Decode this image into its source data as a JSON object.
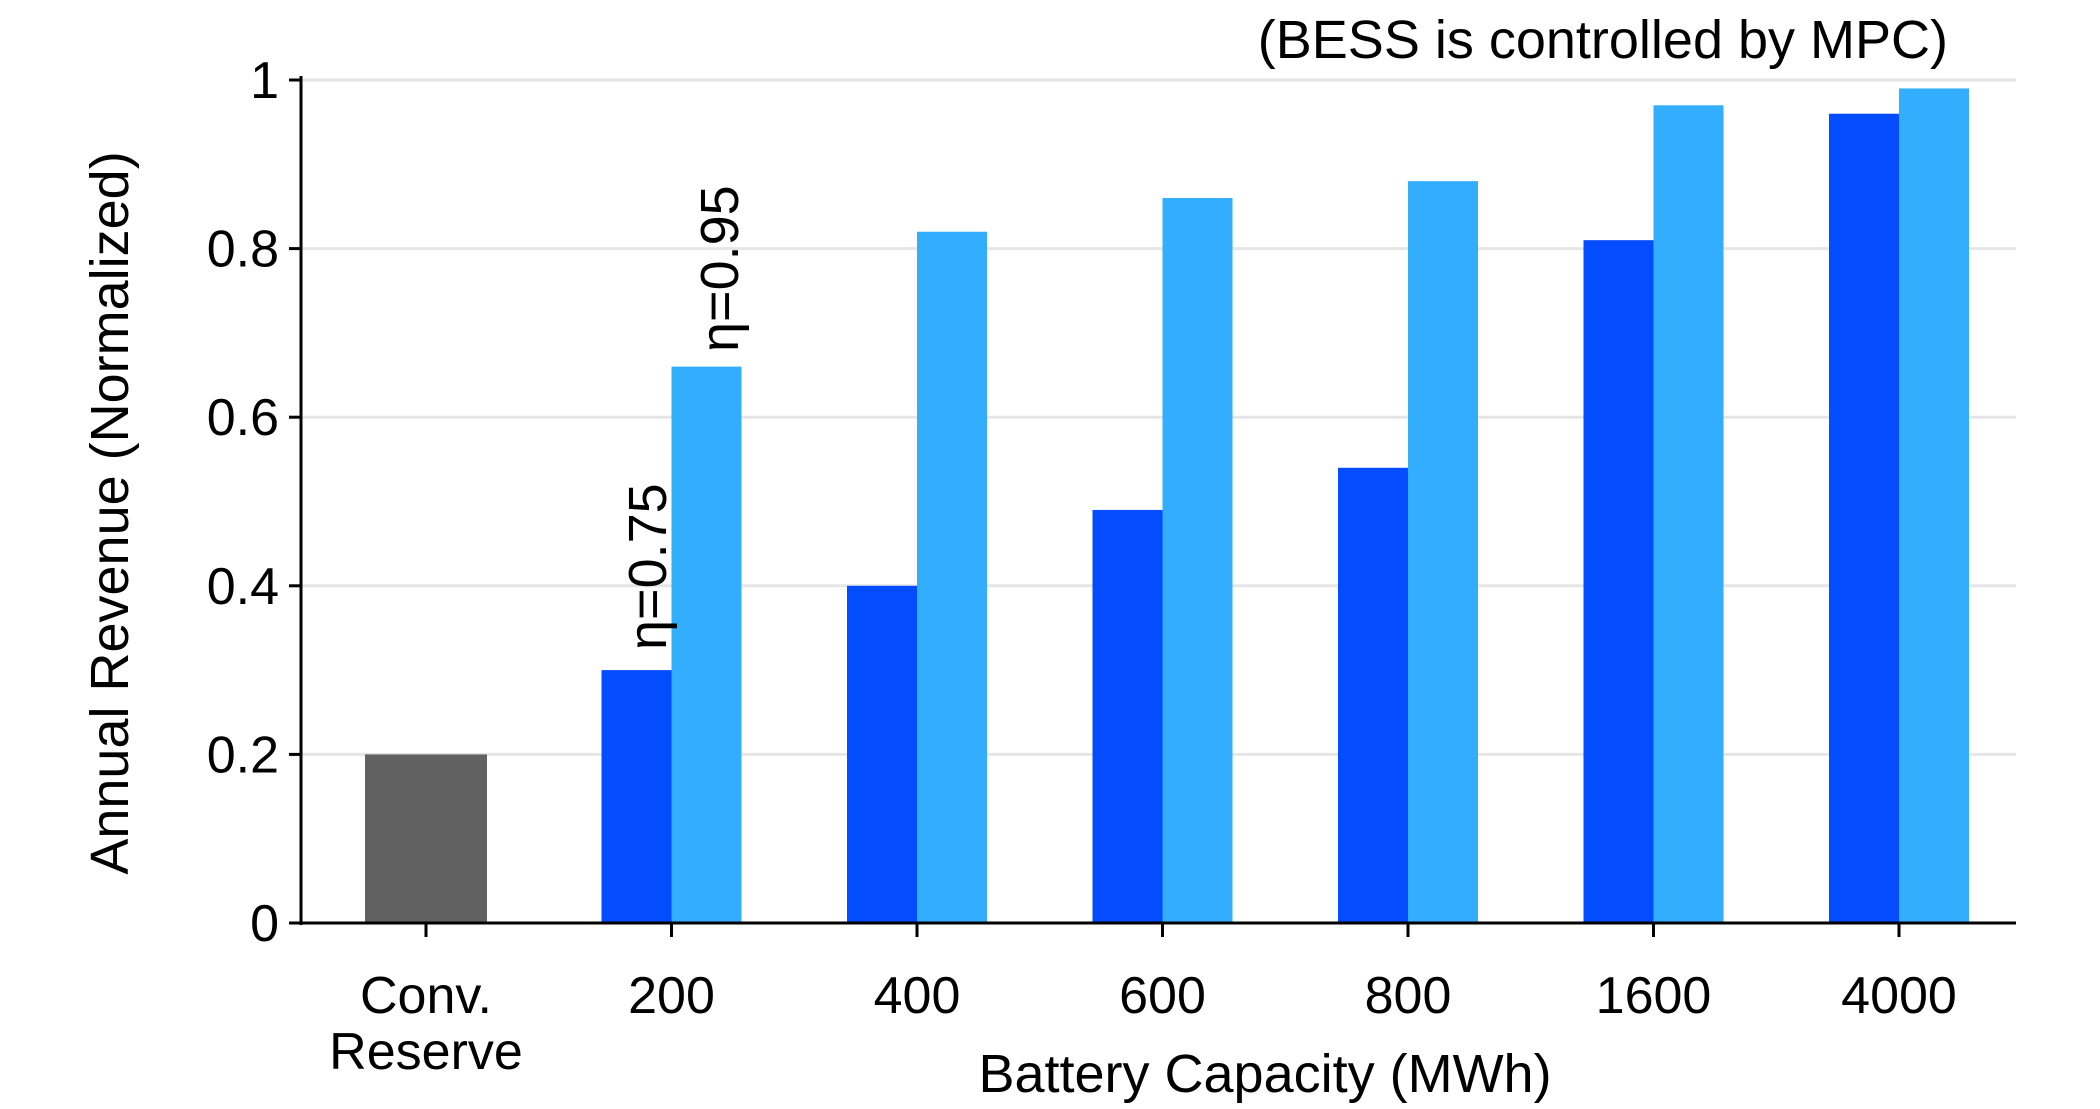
{
  "chart_data": {
    "type": "bar",
    "title": "(BESS is controlled by MPC)",
    "xlabel": "Battery Capacity (MWh)",
    "ylabel": "Annual Revenue (Normalized)",
    "ylim": [
      0,
      1
    ],
    "yticks": [
      "0",
      "0.2",
      "0.4",
      "0.6",
      "0.8",
      "1"
    ],
    "ytick_values": [
      0,
      0.2,
      0.4,
      0.6,
      0.8,
      1
    ],
    "grid": true,
    "categories": [
      {
        "lines": [
          "Conv.",
          "Reserve"
        ]
      },
      {
        "lines": [
          "200"
        ]
      },
      {
        "lines": [
          "400"
        ]
      },
      {
        "lines": [
          "600"
        ]
      },
      {
        "lines": [
          "800"
        ]
      },
      {
        "lines": [
          "1600"
        ]
      },
      {
        "lines": [
          "4000"
        ]
      }
    ],
    "series": [
      {
        "label_annotation": "",
        "color": "#616161",
        "values": [
          0.2,
          null,
          null,
          null,
          null,
          null,
          null
        ]
      },
      {
        "label_annotation": "η=0.75",
        "color": "#044cff",
        "values": [
          null,
          0.3,
          0.4,
          0.49,
          0.54,
          0.81,
          0.96
        ]
      },
      {
        "label_annotation": "η=0.95",
        "color": "#33aeff",
        "values": [
          null,
          0.66,
          0.82,
          0.86,
          0.88,
          0.97,
          0.99
        ]
      }
    ]
  }
}
